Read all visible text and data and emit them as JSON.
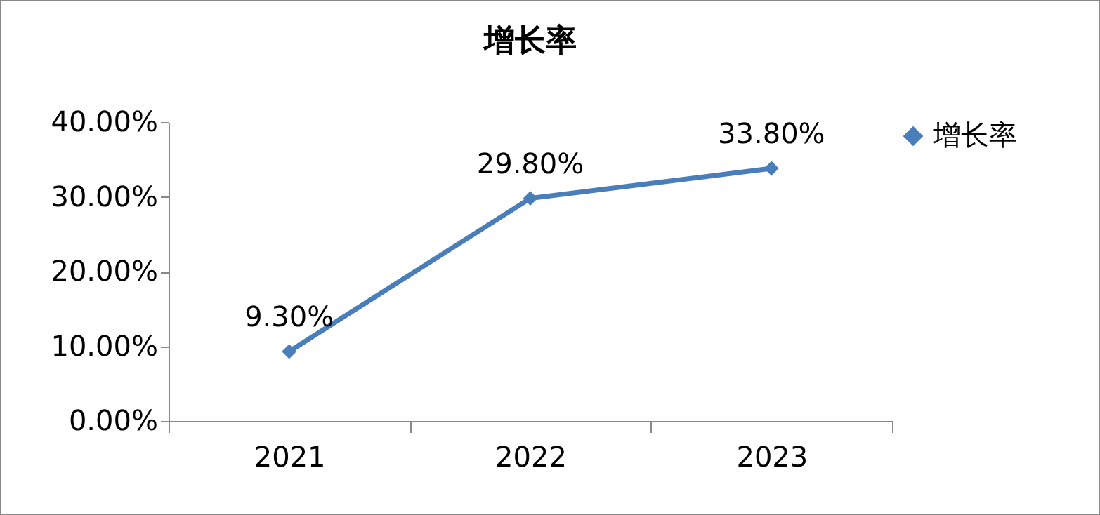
{
  "chart_data": {
    "type": "line",
    "title": "增长率",
    "categories": [
      "2021",
      "2022",
      "2023"
    ],
    "series": [
      {
        "name": "增长率",
        "color": "#4a7ebb",
        "values": [
          9.3,
          29.8,
          33.8
        ]
      }
    ],
    "value_labels": [
      "9.30%",
      "29.80%",
      "33.80%"
    ],
    "ylim": [
      0,
      40
    ],
    "yticks": [
      {
        "value": 0,
        "label": "0.00%"
      },
      {
        "value": 10,
        "label": "10.00%"
      },
      {
        "value": 20,
        "label": "20.00%"
      },
      {
        "value": 30,
        "label": "30.00%"
      },
      {
        "value": 40,
        "label": "40.00%"
      }
    ],
    "marker": "diamond",
    "line_style": "solid",
    "grid": false,
    "legend": "right"
  }
}
